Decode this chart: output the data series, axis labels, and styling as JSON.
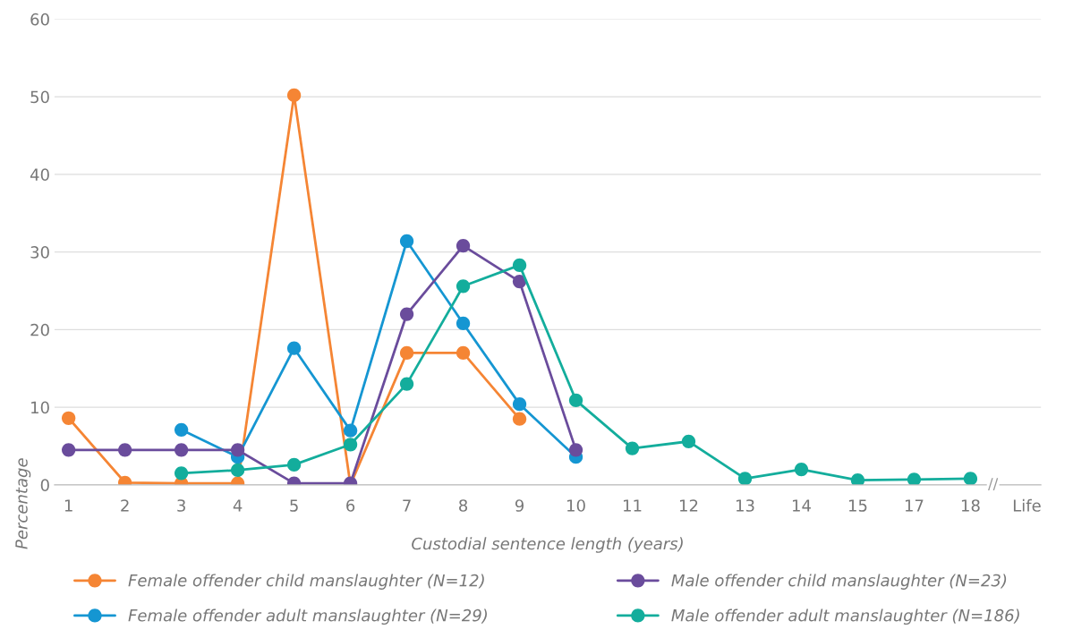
{
  "chart_data": {
    "type": "line",
    "xlabel": "Custodial sentence length (years)",
    "ylabel": "Percentage",
    "categories": [
      "1",
      "2",
      "3",
      "4",
      "5",
      "6",
      "7",
      "8",
      "9",
      "10",
      "11",
      "12",
      "13",
      "14",
      "15",
      "17",
      "18",
      "Life"
    ],
    "series": [
      {
        "name": "Female offender child manslaughter (N=12)",
        "color": "#f58534",
        "values": [
          8.6,
          0.3,
          0.2,
          0.2,
          50.2,
          0,
          17,
          17,
          8.5,
          null,
          null,
          null,
          null,
          null,
          null,
          null,
          null,
          null
        ]
      },
      {
        "name": "Female offender adult manslaughter (N=29)",
        "color": "#1596d2",
        "values": [
          null,
          null,
          7.1,
          3.6,
          17.6,
          7.0,
          31.4,
          20.8,
          10.4,
          3.6,
          null,
          null,
          null,
          null,
          null,
          null,
          null,
          null
        ]
      },
      {
        "name": "Male offender child manslaughter (N=23)",
        "color": "#6a4c9c",
        "values": [
          4.5,
          4.5,
          4.5,
          4.5,
          0.2,
          0.2,
          22,
          30.8,
          26.2,
          4.5,
          null,
          null,
          null,
          null,
          null,
          null,
          null,
          null
        ]
      },
      {
        "name": "Male offender adult manslaughter (N=186)",
        "color": "#13ad9c",
        "values": [
          null,
          null,
          1.5,
          1.9,
          2.6,
          5.2,
          13,
          25.6,
          28.3,
          10.9,
          4.7,
          5.6,
          0.8,
          2,
          0.6,
          0.7,
          0.8,
          null
        ]
      }
    ],
    "annotations": [
      "//"
    ],
    "ylim": [
      0,
      60
    ],
    "yticks": [
      0,
      10,
      20,
      30,
      40,
      50,
      60
    ],
    "grid": "y",
    "legend": "bottom",
    "marker": "circle",
    "line_style": "solid"
  }
}
